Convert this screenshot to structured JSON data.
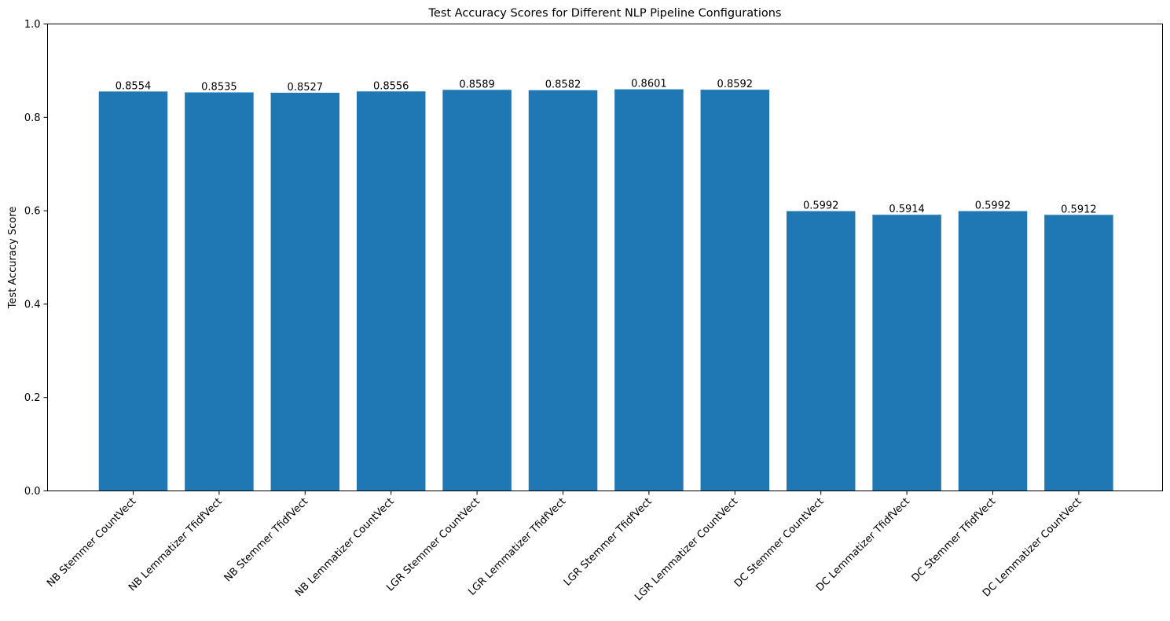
{
  "chart_data": {
    "type": "bar",
    "title": "Test Accuracy Scores for Different NLP Pipeline Configurations",
    "xlabel": "",
    "ylabel": "Test Accuracy Score",
    "ylim": [
      0,
      1.0
    ],
    "yticks": [
      0.0,
      0.2,
      0.4,
      0.6,
      0.8,
      1.0
    ],
    "ytick_labels": [
      "0.0",
      "0.2",
      "0.4",
      "0.6",
      "0.8",
      "1.0"
    ],
    "categories": [
      "NB Stemmer CountVect",
      "NB Lemmatizer TfidfVect",
      "NB Stemmer TfidfVect",
      "NB Lemmatizer CountVect",
      "LGR Stemmer CountVect",
      "LGR Lemmatizer TfidfVect",
      "LGR Stemmer TfidfVect",
      "LGR Lemmatizer CountVect",
      "DC Stemmer CountVect",
      "DC Lemmatizer TfidfVect",
      "DC Stemmer TfidfVect",
      "DC Lemmatizer CountVect"
    ],
    "values": [
      0.8554,
      0.8535,
      0.8527,
      0.8556,
      0.8589,
      0.8582,
      0.8601,
      0.8592,
      0.5992,
      0.5914,
      0.5992,
      0.5912
    ],
    "value_labels": [
      "0.8554",
      "0.8535",
      "0.8527",
      "0.8556",
      "0.8589",
      "0.8582",
      "0.8601",
      "0.8592",
      "0.5992",
      "0.5914",
      "0.5992",
      "0.5912"
    ],
    "bar_color": "#1f77b4",
    "grid": false,
    "legend": "none"
  }
}
